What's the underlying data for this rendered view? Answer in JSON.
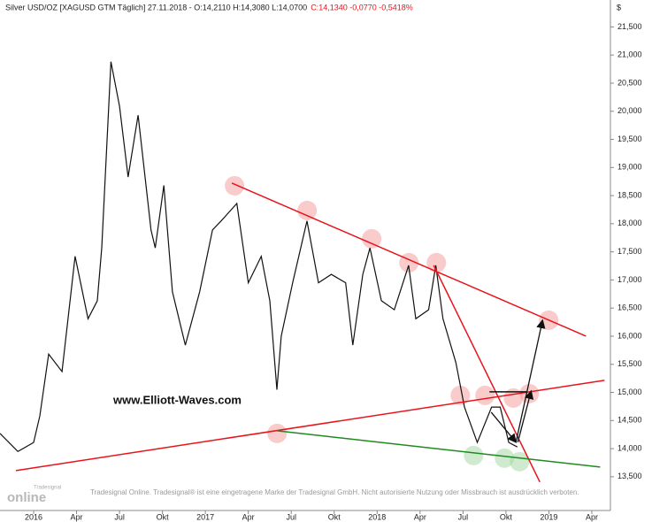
{
  "chart_data": {
    "type": "line",
    "title": "Silver USD/OZ [XAGUSD GTM  Täglich] 27.11.2018 - O:14,2110 H:14,3080 L:14,0700",
    "title_change": "C:14,1340 -0,0770 -0,5418%",
    "watermark": "www.Elliott-Waves.com",
    "footer": "Tradesignal Online. Tradesignal® ist eine eingetragene Marke der Tradesignal GmbH. Nicht autorisierte Nutzung oder Missbrauch ist ausdrücklich verboten.",
    "logo": "online",
    "logo_small": "Tradesignal",
    "y_unit": "$",
    "color": "#111111",
    "x": [
      -2.35,
      -1.1,
      0,
      0.43,
      1.05,
      1.98,
      2.9,
      3.8,
      4.45,
      4.76,
      5.4,
      6.0,
      6.6,
      7.3,
      8.2,
      8.5,
      9.1,
      9.7,
      10.6,
      11.6,
      12.5,
      13.1,
      14.2,
      15.0,
      15.9,
      16.5,
      17.0,
      17.3,
      18.1,
      19.1,
      19.9,
      20.8,
      21.8,
      22.3,
      23.0,
      23.5,
      24.3,
      25.2,
      26.2,
      26.7,
      27.6,
      28.1,
      28.6,
      29.5,
      30.1,
      31.0,
      32.0,
      32.6,
      33.2,
      33.8
    ],
    "values": [
      14270,
      13950,
      14110,
      14580,
      15680,
      15370,
      17420,
      16310,
      16630,
      17570,
      20880,
      20090,
      18830,
      19930,
      17890,
      17570,
      18680,
      16790,
      15840,
      16790,
      17890,
      18050,
      18360,
      16950,
      17420,
      16630,
      15050,
      16000,
      16950,
      18050,
      16950,
      17100,
      16950,
      15840,
      17100,
      17570,
      16630,
      16470,
      17260,
      16310,
      16470,
      17260,
      16310,
      15530,
      14740,
      14110,
      14740,
      14740,
      14110,
      14030
    ],
    "xlim": [
      -2.35,
      40.3
    ],
    "ylim": [
      12900,
      21900
    ],
    "xticks": [
      {
        "value": 0,
        "label": "2016"
      },
      {
        "value": 3,
        "label": "Apr"
      },
      {
        "value": 6,
        "label": "Jul"
      },
      {
        "value": 9,
        "label": "Okt"
      },
      {
        "value": 12,
        "label": "2017"
      },
      {
        "value": 15,
        "label": "Apr"
      },
      {
        "value": 18,
        "label": "Jul"
      },
      {
        "value": 21,
        "label": "Okt"
      },
      {
        "value": 24,
        "label": "2018"
      },
      {
        "value": 27,
        "label": "Apr"
      },
      {
        "value": 30,
        "label": "Jul"
      },
      {
        "value": 33,
        "label": "Okt"
      },
      {
        "value": 36,
        "label": "2019"
      },
      {
        "value": 39,
        "label": "Apr"
      }
    ],
    "yticks": [
      {
        "value": 13500,
        "label": "13,500"
      },
      {
        "value": 14000,
        "label": "14,000"
      },
      {
        "value": 14500,
        "label": "14,500"
      },
      {
        "value": 15000,
        "label": "15,000"
      },
      {
        "value": 15500,
        "label": "15,500"
      },
      {
        "value": 16000,
        "label": "16,000"
      },
      {
        "value": 16500,
        "label": "16,500"
      },
      {
        "value": 17000,
        "label": "17,000"
      },
      {
        "value": 17500,
        "label": "17,500"
      },
      {
        "value": 18000,
        "label": "18,000"
      },
      {
        "value": 18500,
        "label": "18,500"
      },
      {
        "value": 19000,
        "label": "19,000"
      },
      {
        "value": 19500,
        "label": "19,500"
      },
      {
        "value": 20000,
        "label": "20,000"
      },
      {
        "value": 20500,
        "label": "20,500"
      },
      {
        "value": 21000,
        "label": "21,000"
      },
      {
        "value": 21500,
        "label": "21,500"
      }
    ],
    "trendlines": [
      {
        "color": "#e8141c",
        "x": [
          13.85,
          38.59
        ],
        "y": [
          18722,
          16001
        ]
      },
      {
        "color": "#e8141c",
        "x": [
          -1.24,
          39.89
        ],
        "y": [
          13610,
          15215
        ]
      },
      {
        "color": "#e8141c",
        "x": [
          27.95,
          35.37
        ],
        "y": [
          17260,
          13406
        ]
      },
      {
        "color": "#1f8a1f",
        "x": [
          17.0,
          39.58
        ],
        "y": [
          14318,
          13673
        ]
      },
      {
        "color": "#111111",
        "x": [
          31.85,
          34.45
        ],
        "y": [
          15010,
          15010
        ]
      }
    ],
    "arrows": [
      {
        "color": "#111111",
        "x": [
          33.7,
          35.56
        ],
        "y": [
          14114,
          16285
        ]
      },
      {
        "color": "#111111",
        "x": [
          33.83,
          34.76
        ],
        "y": [
          14114,
          15026
        ]
      },
      {
        "color": "#111111",
        "x": [
          31.97,
          33.7
        ],
        "y": [
          14648,
          14114
        ]
      }
    ],
    "highlights": [
      {
        "color": "#f4a0a0",
        "x": 14.04,
        "y": 18675
      },
      {
        "color": "#f4a0a0",
        "x": 19.11,
        "y": 18235
      },
      {
        "color": "#f4a0a0",
        "x": 23.62,
        "y": 17732
      },
      {
        "color": "#f4a0a0",
        "x": 26.22,
        "y": 17307
      },
      {
        "color": "#f4a0a0",
        "x": 28.14,
        "y": 17307
      },
      {
        "color": "#f4a0a0",
        "x": 29.81,
        "y": 14947
      },
      {
        "color": "#f4a0a0",
        "x": 31.54,
        "y": 14947
      },
      {
        "color": "#f4a0a0",
        "x": 33.52,
        "y": 14900
      },
      {
        "color": "#f4a0a0",
        "x": 35.99,
        "y": 16284
      },
      {
        "color": "#f4a0a0",
        "x": 34.63,
        "y": 14979
      },
      {
        "color": "#f4a0a0",
        "x": 17.01,
        "y": 14271
      },
      {
        "color": "#a8d8a8",
        "x": 30.74,
        "y": 13878
      },
      {
        "color": "#a8d8a8",
        "x": 32.9,
        "y": 13831
      },
      {
        "color": "#a8d8a8",
        "x": 33.95,
        "y": 13768
      }
    ]
  }
}
